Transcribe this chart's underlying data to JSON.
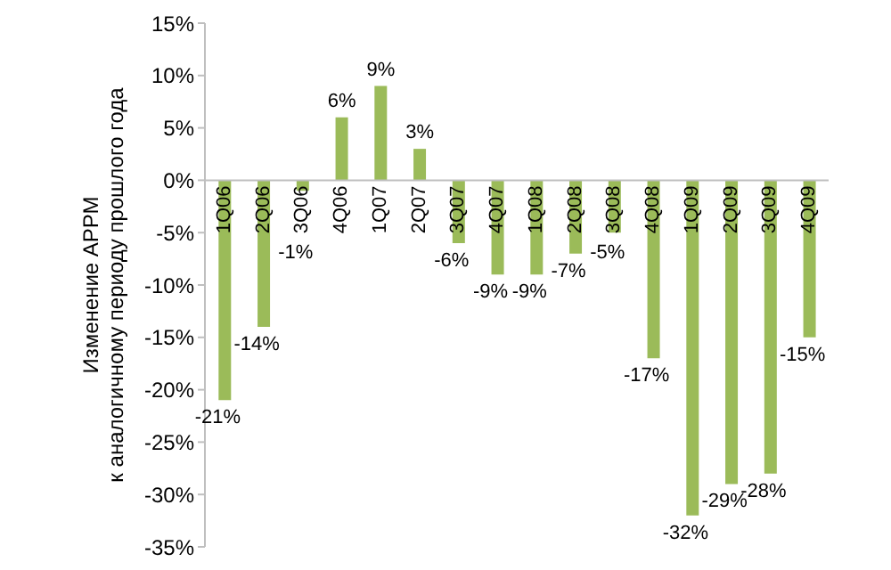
{
  "chart_data": {
    "type": "bar",
    "ylabel": "Изменение АРРМ\nк аналогичному периоду прошлого года",
    "categories": [
      "1Q06",
      "2Q06",
      "3Q06",
      "4Q06",
      "1Q07",
      "2Q07",
      "3Q07",
      "4Q07",
      "1Q08",
      "2Q08",
      "3Q08",
      "4Q08",
      "1Q09",
      "2Q09",
      "3Q09",
      "4Q09"
    ],
    "values": [
      -21,
      -14,
      -1,
      6,
      9,
      3,
      -6,
      -9,
      -9,
      -7,
      -5,
      -17,
      -32,
      -29,
      -28,
      -15
    ],
    "value_labels": [
      "-21%",
      "-14%",
      "-1%",
      "6%",
      "9%",
      "3%",
      "-6%",
      "-9%",
      "-9%",
      "-7%",
      "-5%",
      "-17%",
      "-32%",
      "-29%",
      "-28%",
      "-15%"
    ],
    "color": "#9bbb59",
    "ylim": [
      -35,
      15
    ],
    "yticks": [
      {
        "value": -35,
        "label": "-35%"
      },
      {
        "value": -30,
        "label": "-30%"
      },
      {
        "value": -25,
        "label": "-25%"
      },
      {
        "value": -20,
        "label": "-20%"
      },
      {
        "value": -15,
        "label": "-15%"
      },
      {
        "value": -10,
        "label": "-10%"
      },
      {
        "value": -5,
        "label": "-5%"
      },
      {
        "value": 0,
        "label": "0%"
      },
      {
        "value": 5,
        "label": "5%"
      },
      {
        "value": 10,
        "label": "10%"
      },
      {
        "value": 15,
        "label": "15%"
      }
    ],
    "grid": false
  }
}
